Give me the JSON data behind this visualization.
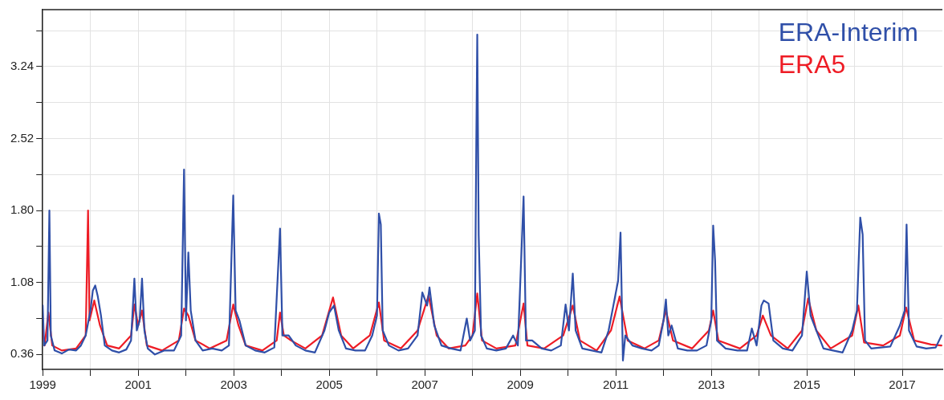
{
  "chart_data": {
    "type": "line",
    "legend": "top right",
    "grid": true,
    "marker": "none",
    "line_style": "solid",
    "xlim": [
      1999,
      2017.84
    ],
    "ylim": [
      0.21,
      3.81
    ],
    "xticks": [
      1999,
      {
        "value": 2000,
        "label": null
      },
      2001,
      {
        "value": 2002,
        "label": null
      },
      2003,
      {
        "value": 2004,
        "label": null
      },
      2005,
      {
        "value": 2006,
        "label": null
      },
      2007,
      {
        "value": 2008,
        "label": null
      },
      2009,
      {
        "value": 2010,
        "label": null
      },
      2011,
      {
        "value": 2012,
        "label": null
      },
      2013,
      {
        "value": 2014,
        "label": null
      },
      2015,
      {
        "value": 2016,
        "label": null
      },
      2017
    ],
    "yticks": [
      0.36,
      {
        "value": 0.72,
        "label": null
      },
      1.08,
      {
        "value": 1.44,
        "label": null
      },
      {
        "value": 1.8,
        "label": "1.80"
      },
      {
        "value": 2.16,
        "label": null
      },
      2.52,
      {
        "value": 2.88,
        "label": null
      },
      3.24,
      {
        "value": 3.6,
        "label": null
      }
    ],
    "series": [
      {
        "name": "ERA-Interim",
        "color": "#2f4fa8",
        "x": [
          1999.0,
          1999.03,
          1999.1,
          1999.14,
          1999.17,
          1999.25,
          1999.4,
          1999.55,
          1999.7,
          1999.8,
          1999.9,
          2000.0,
          2000.05,
          2000.1,
          2000.15,
          2000.22,
          2000.3,
          2000.45,
          2000.6,
          2000.75,
          2000.85,
          2000.92,
          2000.97,
          2001.03,
          2001.08,
          2001.13,
          2001.2,
          2001.35,
          2001.55,
          2001.75,
          2001.9,
          2001.96,
          2002.0,
          2002.05,
          2002.1,
          2002.2,
          2002.35,
          2002.55,
          2002.75,
          2002.9,
          2002.99,
          2003.04,
          2003.12,
          2003.25,
          2003.45,
          2003.65,
          2003.85,
          2003.97,
          2004.02,
          2004.15,
          2004.3,
          2004.5,
          2004.7,
          2004.9,
          2005.0,
          2005.1,
          2005.2,
          2005.35,
          2005.55,
          2005.75,
          2005.9,
          2006.0,
          2006.04,
          2006.08,
          2006.12,
          2006.25,
          2006.45,
          2006.65,
          2006.85,
          2006.95,
          2007.05,
          2007.1,
          2007.2,
          2007.35,
          2007.55,
          2007.75,
          2007.88,
          2007.95,
          2008.05,
          2008.08,
          2008.1,
          2008.13,
          2008.18,
          2008.3,
          2008.5,
          2008.7,
          2008.85,
          2008.95,
          2009.07,
          2009.12,
          2009.25,
          2009.45,
          2009.65,
          2009.85,
          2009.95,
          2010.02,
          2010.1,
          2010.16,
          2010.3,
          2010.5,
          2010.7,
          2010.85,
          2010.95,
          2011.05,
          2011.1,
          2011.15,
          2011.2,
          2011.35,
          2011.55,
          2011.75,
          2011.9,
          2012.0,
          2012.05,
          2012.1,
          2012.17,
          2012.3,
          2012.5,
          2012.7,
          2012.9,
          2013.0,
          2013.04,
          2013.08,
          2013.12,
          2013.3,
          2013.55,
          2013.75,
          2013.85,
          2013.95,
          2014.05,
          2014.1,
          2014.2,
          2014.3,
          2014.5,
          2014.7,
          2014.9,
          2015.0,
          2015.08,
          2015.2,
          2015.35,
          2015.55,
          2015.75,
          2015.95,
          2016.05,
          2016.12,
          2016.17,
          2016.22,
          2016.35,
          2016.55,
          2016.75,
          2016.95,
          2017.05,
          2017.09,
          2017.14,
          2017.3,
          2017.5,
          2017.7,
          2017.82
        ],
        "values": [
          0.85,
          0.45,
          0.5,
          1.8,
          0.55,
          0.4,
          0.37,
          0.41,
          0.4,
          0.45,
          0.55,
          0.8,
          1.0,
          1.05,
          0.95,
          0.75,
          0.45,
          0.4,
          0.38,
          0.41,
          0.5,
          1.12,
          0.6,
          0.7,
          1.12,
          0.6,
          0.42,
          0.36,
          0.4,
          0.4,
          0.55,
          2.21,
          0.7,
          1.38,
          0.8,
          0.5,
          0.4,
          0.42,
          0.4,
          0.45,
          1.95,
          0.8,
          0.7,
          0.45,
          0.4,
          0.38,
          0.43,
          1.62,
          0.55,
          0.55,
          0.45,
          0.4,
          0.38,
          0.6,
          0.78,
          0.85,
          0.6,
          0.42,
          0.4,
          0.4,
          0.55,
          0.75,
          1.77,
          1.66,
          0.6,
          0.45,
          0.4,
          0.42,
          0.55,
          0.98,
          0.85,
          1.03,
          0.65,
          0.45,
          0.42,
          0.4,
          0.72,
          0.5,
          0.6,
          2.51,
          3.56,
          1.55,
          0.55,
          0.42,
          0.4,
          0.42,
          0.55,
          0.45,
          1.94,
          0.5,
          0.5,
          0.42,
          0.4,
          0.45,
          0.86,
          0.6,
          1.17,
          0.6,
          0.42,
          0.4,
          0.38,
          0.6,
          0.85,
          1.1,
          1.58,
          0.3,
          0.55,
          0.45,
          0.42,
          0.4,
          0.45,
          0.7,
          0.91,
          0.55,
          0.65,
          0.42,
          0.4,
          0.4,
          0.45,
          0.7,
          1.65,
          1.3,
          0.5,
          0.42,
          0.4,
          0.4,
          0.62,
          0.45,
          0.85,
          0.9,
          0.87,
          0.5,
          0.42,
          0.4,
          0.55,
          1.19,
          0.75,
          0.6,
          0.42,
          0.4,
          0.38,
          0.6,
          0.8,
          1.73,
          1.56,
          0.5,
          0.42,
          0.43,
          0.44,
          0.65,
          0.8,
          1.66,
          0.6,
          0.44,
          0.42,
          0.43,
          0.55
        ]
      },
      {
        "name": "ERA5",
        "color": "#ee1c25",
        "x": [
          1999.0,
          1999.04,
          1999.12,
          1999.2,
          1999.4,
          1999.7,
          1999.9,
          1999.95,
          1999.98,
          2000.08,
          2000.2,
          2000.35,
          2000.6,
          2000.85,
          2000.92,
          2001.0,
          2001.08,
          2001.18,
          2001.5,
          2001.85,
          2001.96,
          2002.05,
          2002.2,
          2002.5,
          2002.85,
          2002.99,
          2003.1,
          2003.25,
          2003.6,
          2003.9,
          2003.97,
          2004.05,
          2004.2,
          2004.5,
          2004.85,
          2005.08,
          2005.25,
          2005.5,
          2005.85,
          2006.04,
          2006.15,
          2006.5,
          2006.85,
          2007.08,
          2007.25,
          2007.5,
          2007.85,
          2008.0,
          2008.1,
          2008.2,
          2008.5,
          2008.9,
          2009.07,
          2009.15,
          2009.5,
          2009.9,
          2010.1,
          2010.25,
          2010.6,
          2010.9,
          2011.08,
          2011.25,
          2011.6,
          2011.9,
          2012.05,
          2012.2,
          2012.6,
          2012.95,
          2013.04,
          2013.15,
          2013.6,
          2013.95,
          2014.08,
          2014.25,
          2014.6,
          2014.9,
          2015.03,
          2015.2,
          2015.5,
          2015.95,
          2016.08,
          2016.2,
          2016.6,
          2016.95,
          2017.08,
          2017.25,
          2017.6,
          2017.82
        ],
        "values": [
          0.6,
          0.45,
          0.78,
          0.45,
          0.4,
          0.42,
          0.55,
          1.8,
          0.7,
          0.9,
          0.65,
          0.45,
          0.42,
          0.55,
          0.86,
          0.65,
          0.8,
          0.45,
          0.4,
          0.5,
          0.82,
          0.75,
          0.5,
          0.42,
          0.5,
          0.86,
          0.65,
          0.45,
          0.4,
          0.5,
          0.78,
          0.55,
          0.5,
          0.42,
          0.55,
          0.93,
          0.55,
          0.42,
          0.55,
          0.88,
          0.5,
          0.42,
          0.6,
          0.95,
          0.55,
          0.42,
          0.45,
          0.55,
          0.97,
          0.5,
          0.42,
          0.45,
          0.87,
          0.45,
          0.42,
          0.55,
          0.85,
          0.5,
          0.4,
          0.6,
          0.94,
          0.5,
          0.42,
          0.5,
          0.8,
          0.5,
          0.42,
          0.6,
          0.8,
          0.5,
          0.42,
          0.55,
          0.75,
          0.55,
          0.42,
          0.6,
          0.92,
          0.6,
          0.42,
          0.55,
          0.85,
          0.48,
          0.45,
          0.55,
          0.83,
          0.5,
          0.46,
          0.45
        ]
      }
    ]
  }
}
